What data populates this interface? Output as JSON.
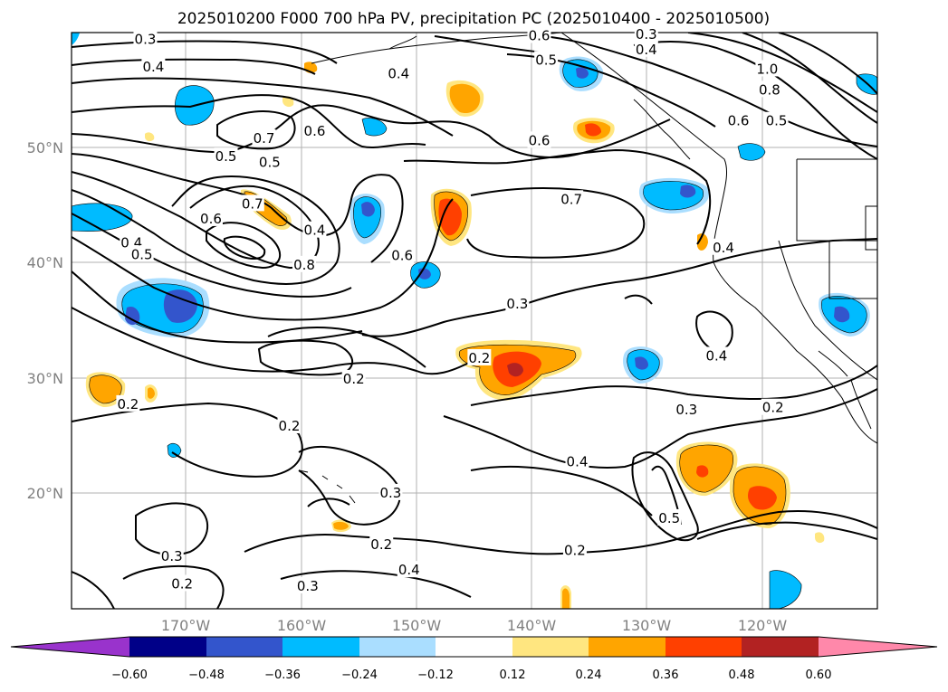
{
  "title": "2025010200 F000 700 hPa PV, precipitation PC (2025010400 - 2025010500)",
  "latitude_labels": [
    "50°N",
    "40°N",
    "30°N",
    "20°N"
  ],
  "longitude_labels": [
    "170°W",
    "160°W",
    "150°W",
    "140°W",
    "130°W",
    "120°W"
  ],
  "colorbar": {
    "ticks": [
      "−0.60",
      "−0.48",
      "−0.36",
      "−0.24",
      "−0.12",
      "0.12",
      "0.24",
      "0.36",
      "0.48",
      "0.60"
    ],
    "colors": [
      "#9933cc",
      "#000088",
      "#3355cc",
      "#00bbff",
      "#aadeff",
      "#ffffff",
      "#ffe680",
      "#ffa500",
      "#ff4000",
      "#b22222",
      "#ff88aa"
    ]
  },
  "contour_labels": [
    {
      "text": "0.3",
      "lon": -173.5,
      "lat": 59.4
    },
    {
      "text": "0.4",
      "lon": -172.8,
      "lat": 57.0
    },
    {
      "text": "0.6",
      "lon": -139.3,
      "lat": 59.7
    },
    {
      "text": "0.5",
      "lon": -138.7,
      "lat": 57.6
    },
    {
      "text": "0.3",
      "lon": -130.0,
      "lat": 59.8
    },
    {
      "text": "0.4",
      "lon": -130.0,
      "lat": 58.5
    },
    {
      "text": "1.0",
      "lon": -119.5,
      "lat": 56.8
    },
    {
      "text": "0.8",
      "lon": -119.3,
      "lat": 55.0
    },
    {
      "text": "0.6",
      "lon": -122.0,
      "lat": 52.3
    },
    {
      "text": "0.5",
      "lon": -118.7,
      "lat": 52.3
    },
    {
      "text": "0.4",
      "lon": -151.5,
      "lat": 56.4
    },
    {
      "text": "0.7",
      "lon": -163.2,
      "lat": 50.8
    },
    {
      "text": "0.6",
      "lon": -158.8,
      "lat": 51.4
    },
    {
      "text": "0.5",
      "lon": -166.5,
      "lat": 49.2
    },
    {
      "text": "0.5",
      "lon": -162.7,
      "lat": 48.7
    },
    {
      "text": "0.7",
      "lon": -164.2,
      "lat": 45.1
    },
    {
      "text": "0.6",
      "lon": -167.8,
      "lat": 43.8
    },
    {
      "text": "0.4",
      "lon": -158.8,
      "lat": 42.8
    },
    {
      "text": "0.8",
      "lon": -159.7,
      "lat": 39.8
    },
    {
      "text": "0.4",
      "lon": -174.7,
      "lat": 41.7
    },
    {
      "text": "0.5",
      "lon": -173.8,
      "lat": 40.7
    },
    {
      "text": "0.6",
      "lon": -151.2,
      "lat": 40.6
    },
    {
      "text": "0.6",
      "lon": -139.3,
      "lat": 50.6
    },
    {
      "text": "0.7",
      "lon": -136.5,
      "lat": 45.5
    },
    {
      "text": "0.4",
      "lon": -123.3,
      "lat": 41.3
    },
    {
      "text": "0.3",
      "lon": -141.2,
      "lat": 36.4
    },
    {
      "text": "0.2",
      "lon": -144.5,
      "lat": 31.7
    },
    {
      "text": "0.4",
      "lon": -123.9,
      "lat": 31.9
    },
    {
      "text": "0.2",
      "lon": -155.4,
      "lat": 29.9
    },
    {
      "text": "0.2",
      "lon": -175.0,
      "lat": 27.7
    },
    {
      "text": "0.3",
      "lon": -126.5,
      "lat": 27.2
    },
    {
      "text": "0.2",
      "lon": -119.0,
      "lat": 27.4
    },
    {
      "text": "0.2",
      "lon": -161.0,
      "lat": 25.8
    },
    {
      "text": "0.4",
      "lon": -136.0,
      "lat": 22.7
    },
    {
      "text": "0.3",
      "lon": -152.2,
      "lat": 20.0
    },
    {
      "text": "0.5",
      "lon": -128.0,
      "lat": 17.8
    },
    {
      "text": "0.2",
      "lon": -153.0,
      "lat": 15.5
    },
    {
      "text": "0.2",
      "lon": -136.2,
      "lat": 15.0
    },
    {
      "text": "0.4",
      "lon": -150.6,
      "lat": 13.3
    },
    {
      "text": "0.3",
      "lon": -171.2,
      "lat": 14.5
    },
    {
      "text": "0.2",
      "lon": -170.3,
      "lat": 12.1
    },
    {
      "text": "0.3",
      "lon": -159.4,
      "lat": 11.9
    }
  ]
}
